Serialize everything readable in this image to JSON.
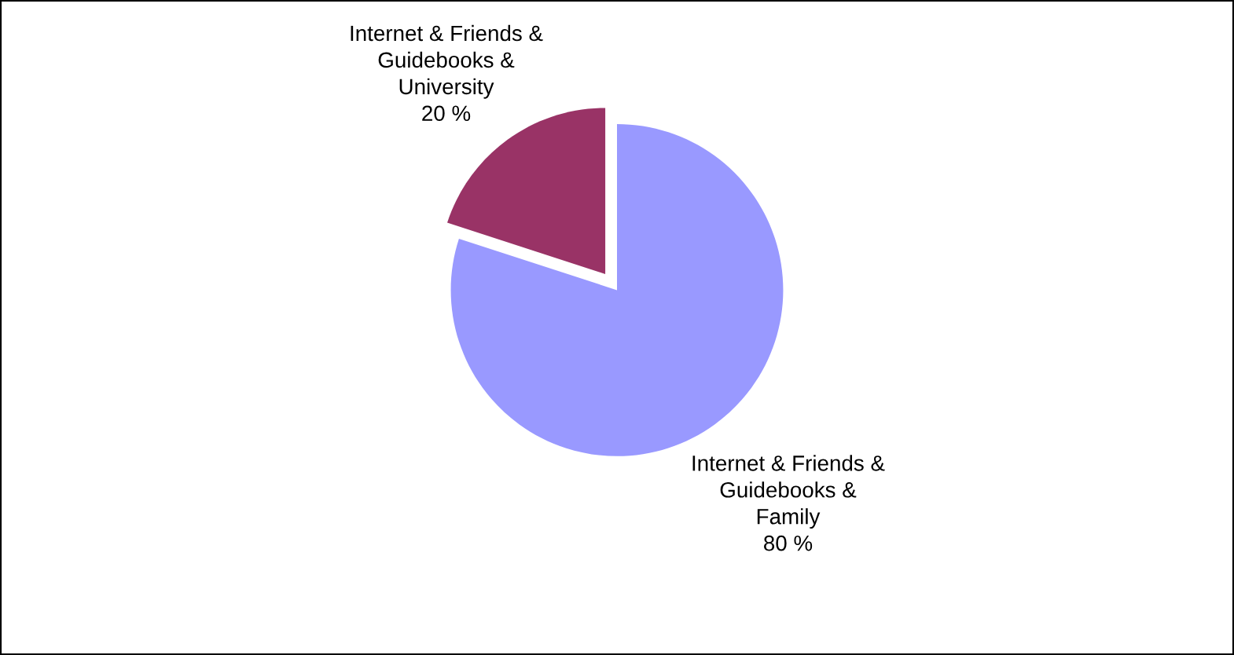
{
  "chart_data": {
    "type": "pie",
    "categories": [
      "Internet & Friends &\nGuidebooks &\nFamily",
      "Internet & Friends &\nGuidebooks &\nUniversity"
    ],
    "values": [
      80,
      20
    ],
    "colors": [
      "#9999ff",
      "#993366"
    ],
    "value_labels": [
      "80 %",
      "20 %"
    ]
  }
}
